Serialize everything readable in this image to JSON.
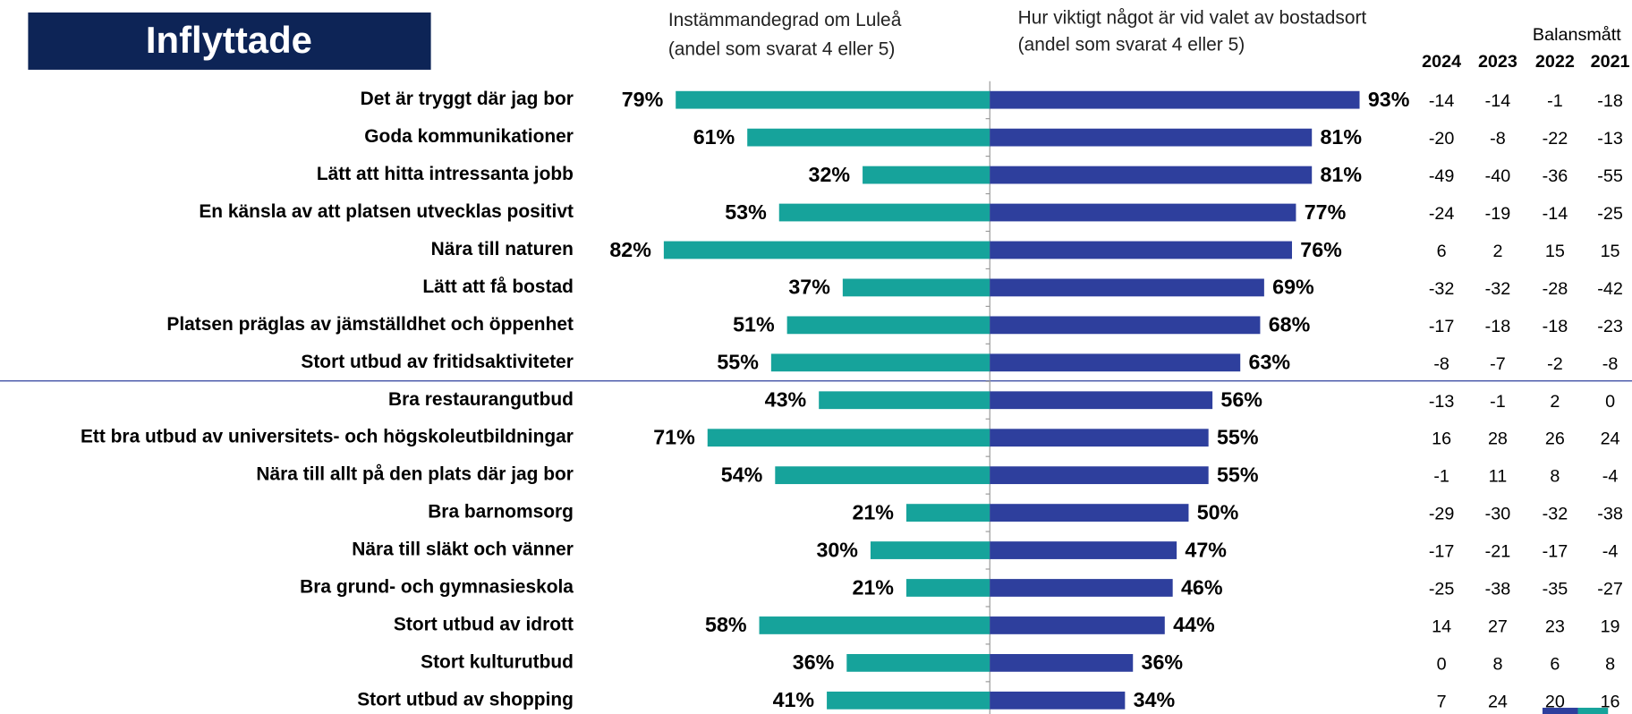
{
  "chart_data": {
    "type": "butterfly",
    "title": "Inflyttade",
    "categories": [
      "Det är tryggt där jag bor",
      "Goda kommunikationer",
      "Lätt att hitta intressanta jobb",
      "En känsla av att platsen utvecklas positivt",
      "Nära till naturen",
      "Lätt att få bostad",
      "Platsen präglas av jämställdhet och öppenhet",
      "Stort utbud av fritidsaktiviteter",
      "Bra restaurangutbud",
      "Ett bra utbud av universitets- och högskoleutbildningar",
      "Nära till allt på den plats där jag bor",
      "Bra barnomsorg",
      "Nära till släkt och vänner",
      "Bra grund- och gymnasieskola",
      "Stort utbud av idrott",
      "Stort kulturutbud",
      "Stort utbud av shopping"
    ],
    "series": [
      {
        "name": "Instämmandegrad om Luleå",
        "note": "(andel som svarat 4 eller 5)",
        "color": "#16a39b",
        "values": [
          79,
          61,
          32,
          53,
          82,
          37,
          51,
          55,
          43,
          71,
          54,
          21,
          30,
          21,
          58,
          36,
          41
        ],
        "value_labels": [
          "79%",
          "61%",
          "32%",
          "53%",
          "82%",
          "37%",
          "51%",
          "55%",
          "43%",
          "71%",
          "54%",
          "21%",
          "30%",
          "21%",
          "58%",
          "36%",
          "41%"
        ]
      },
      {
        "name": "Hur viktigt något är vid valet av bostadsort",
        "note": "(andel som svarat 4 eller 5)",
        "color": "#2e3f9d",
        "values": [
          93,
          81,
          81,
          77,
          76,
          69,
          68,
          63,
          56,
          55,
          55,
          50,
          47,
          46,
          44,
          36,
          34
        ],
        "value_labels": [
          "93%",
          "81%",
          "81%",
          "77%",
          "76%",
          "69%",
          "68%",
          "63%",
          "56%",
          "55%",
          "55%",
          "50%",
          "47%",
          "46%",
          "44%",
          "36%",
          "34%"
        ]
      }
    ],
    "table": {
      "title": "Balansmått",
      "columns": [
        "2024",
        "2023",
        "2022",
        "2021"
      ],
      "rows": [
        [
          -14,
          -14,
          -1,
          -18
        ],
        [
          -20,
          -8,
          -22,
          -13
        ],
        [
          -49,
          -40,
          -36,
          -55
        ],
        [
          -24,
          -19,
          -14,
          -25
        ],
        [
          6,
          2,
          15,
          15
        ],
        [
          -32,
          -32,
          -28,
          -42
        ],
        [
          -17,
          -18,
          -18,
          -23
        ],
        [
          -8,
          -7,
          -2,
          -8
        ],
        [
          -13,
          -1,
          2,
          0
        ],
        [
          16,
          28,
          26,
          24
        ],
        [
          -1,
          11,
          8,
          -4
        ],
        [
          -29,
          -30,
          -32,
          -38
        ],
        [
          -17,
          -21,
          -17,
          -4
        ],
        [
          -25,
          -38,
          -35,
          -27
        ],
        [
          14,
          27,
          23,
          19
        ],
        [
          0,
          8,
          6,
          8
        ],
        [
          7,
          24,
          20,
          16
        ]
      ]
    }
  }
}
